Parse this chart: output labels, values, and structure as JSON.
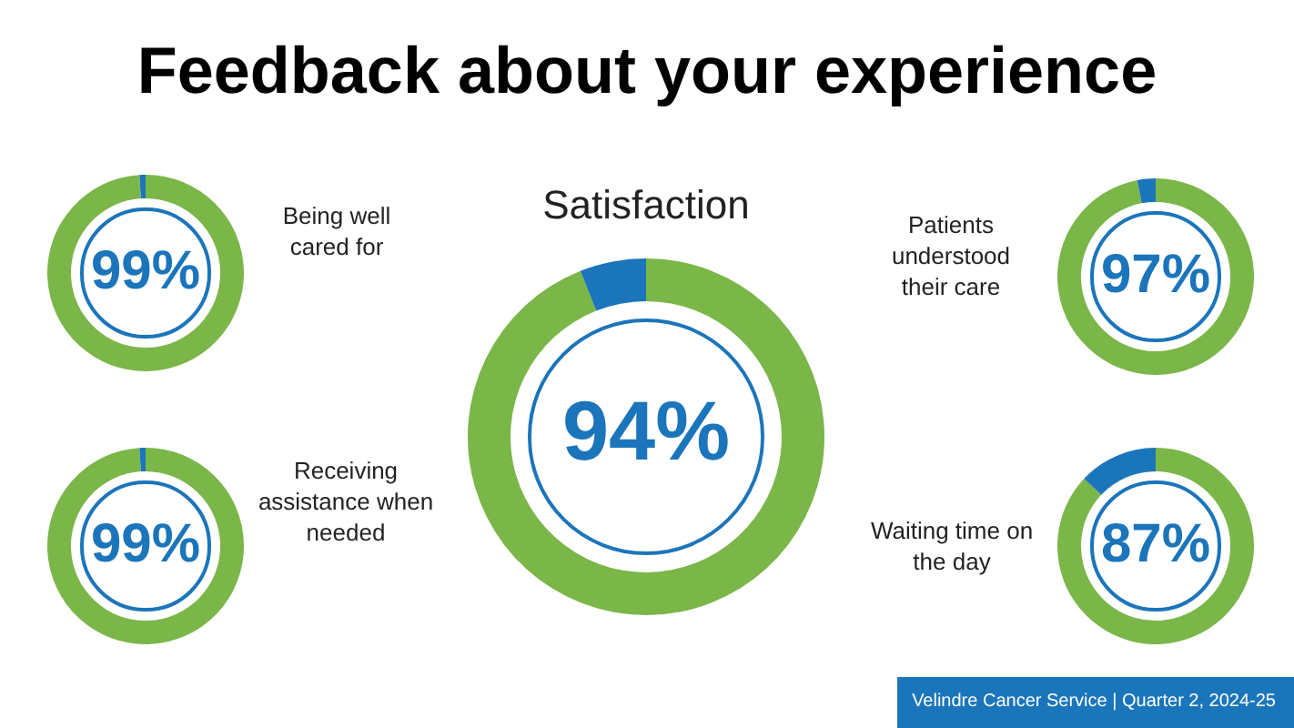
{
  "chart_data": [
    {
      "type": "other",
      "title": "Feedback about your experience",
      "annotations": [
        "Velindre Cancer Service | Quarter 2, 2024-25"
      ]
    },
    {
      "type": "donut",
      "title": "Being well cared for",
      "categories": [
        null,
        null
      ],
      "values": [
        99,
        1
      ],
      "colors": [
        "#7ab648",
        "#1b75bb"
      ],
      "value_labels": [
        "99%",
        null
      ]
    },
    {
      "type": "donut",
      "title": "Receiving assistance when needed",
      "categories": [
        null,
        null
      ],
      "values": [
        99,
        1
      ],
      "colors": [
        "#7ab648",
        "#1b75bb"
      ],
      "value_labels": [
        "99%",
        null
      ]
    },
    {
      "type": "donut",
      "title": "Satisfaction",
      "categories": [
        null,
        null
      ],
      "values": [
        94,
        6
      ],
      "colors": [
        "#7ab648",
        "#1b75bb"
      ],
      "value_labels": [
        "94%",
        null
      ]
    },
    {
      "type": "donut",
      "title": "Patients understood their care",
      "categories": [
        null,
        null
      ],
      "values": [
        97,
        3
      ],
      "colors": [
        "#7ab648",
        "#1b75bb"
      ],
      "value_labels": [
        "97%",
        null
      ]
    },
    {
      "type": "donut",
      "title": "Waiting time on the day",
      "categories": [
        null,
        null
      ],
      "values": [
        87,
        13
      ],
      "colors": [
        "#7ab648",
        "#1b75bb"
      ],
      "value_labels": [
        "87%",
        null
      ]
    }
  ]
}
